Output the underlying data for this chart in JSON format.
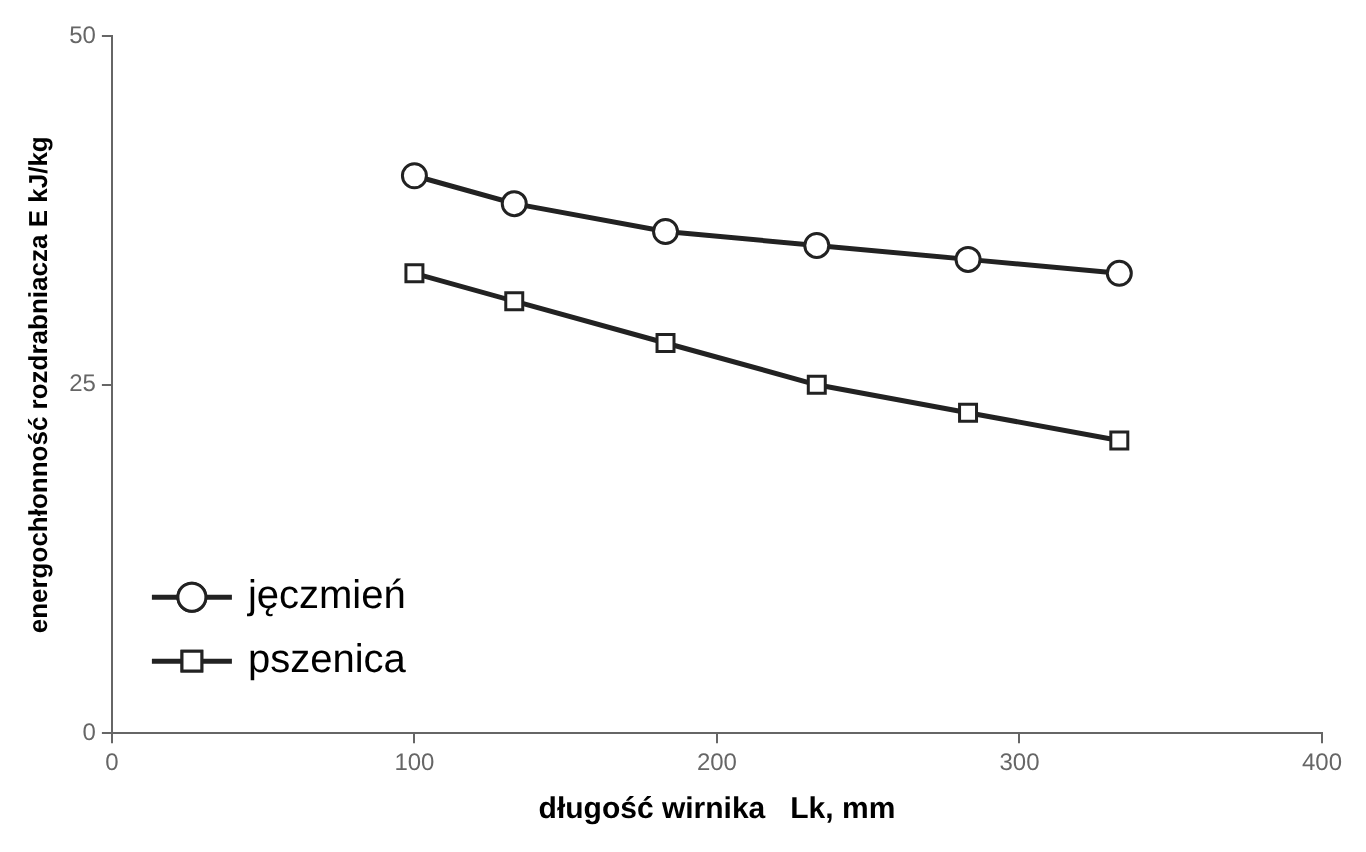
{
  "chart_data": {
    "type": "line",
    "xlabel": "długość wirnika   Lk, mm",
    "ylabel": "energochłonność rozdrabniacza E kJ/kg",
    "x": [
      100,
      133,
      183,
      233,
      283,
      333
    ],
    "series": [
      {
        "name": "jęczmień",
        "color": "#222222",
        "marker": "circle",
        "values": [
          40,
          38,
          36,
          35,
          34,
          33
        ]
      },
      {
        "name": "pszenica",
        "color": "#222222",
        "marker": "square",
        "values": [
          33,
          31,
          28,
          25,
          23,
          21
        ]
      }
    ],
    "xlim": [
      0,
      400
    ],
    "xticks": [
      0,
      100,
      200,
      300,
      400
    ],
    "ylim": [
      0,
      50
    ],
    "yticks": [
      0,
      25,
      50
    ],
    "grid": false,
    "legend": "bottom left"
  }
}
